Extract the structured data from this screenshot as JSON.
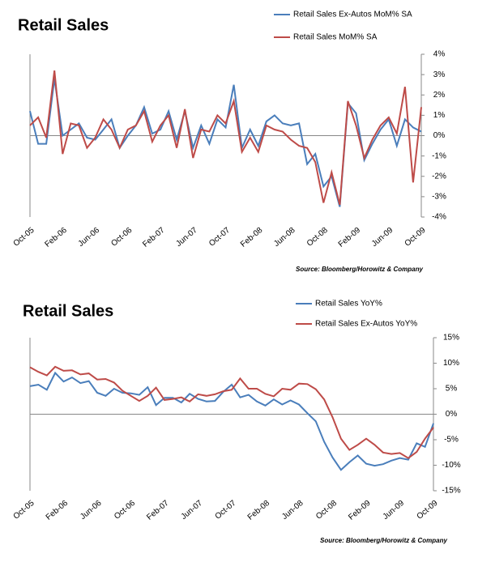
{
  "chart_data": [
    {
      "type": "line",
      "title": "Retail Sales",
      "source": "Source: Bloomberg/Horowitz  & Company",
      "categories": [
        "Oct-05",
        null,
        null,
        null,
        "Feb-06",
        null,
        null,
        null,
        "Jun-06",
        null,
        null,
        null,
        "Oct-06",
        null,
        null,
        null,
        "Feb-07",
        null,
        null,
        null,
        "Jun-07",
        null,
        null,
        null,
        "Oct-07",
        null,
        null,
        null,
        "Feb-08",
        null,
        null,
        null,
        "Jun-08",
        null,
        null,
        null,
        "Oct-08",
        null,
        null,
        null,
        "Feb-09",
        null,
        null,
        null,
        "Jun-09",
        null,
        null,
        null,
        "Oct-09"
      ],
      "series": [
        {
          "name": "Retail Sales Ex-Autos  MoM%  SA",
          "color": "#4a7ebb",
          "values": [
            1.2,
            -0.4,
            -0.4,
            2.8,
            0.0,
            0.3,
            0.6,
            -0.1,
            -0.2,
            0.3,
            0.8,
            -0.6,
            0.0,
            0.5,
            1.4,
            0.1,
            0.3,
            1.2,
            -0.2,
            1.2,
            -0.6,
            0.5,
            -0.4,
            0.8,
            0.4,
            2.5,
            -0.6,
            0.3,
            -0.5,
            0.7,
            1.0,
            0.6,
            0.5,
            0.6,
            -1.4,
            -0.9,
            -2.5,
            -2.0,
            -3.5,
            1.6,
            1.1,
            -1.2,
            -0.4,
            0.3,
            0.8,
            -0.5,
            0.8,
            0.4,
            0.2
          ]
        },
        {
          "name": "Retail Sales MoM%  SA",
          "color": "#be4b48",
          "values": [
            0.5,
            0.9,
            -0.1,
            3.2,
            -0.9,
            0.6,
            0.5,
            -0.6,
            -0.1,
            0.8,
            0.3,
            -0.6,
            0.3,
            0.5,
            1.2,
            -0.3,
            0.5,
            1.0,
            -0.6,
            1.3,
            -1.1,
            0.3,
            0.2,
            1.0,
            0.6,
            1.7,
            -0.8,
            -0.1,
            -0.8,
            0.5,
            0.3,
            0.2,
            -0.2,
            -0.5,
            -0.6,
            -1.3,
            -3.3,
            -1.8,
            -3.4,
            1.7,
            0.5,
            -1.1,
            -0.2,
            0.5,
            0.9,
            0.1,
            2.4,
            -2.3,
            1.4
          ]
        }
      ],
      "ylim": [
        -4,
        4
      ],
      "yticks": [
        {
          "value": -4,
          "label": "-4%"
        },
        {
          "value": -3,
          "label": "-3%"
        },
        {
          "value": -2,
          "label": "-2%"
        },
        {
          "value": -1,
          "label": "-1%"
        },
        {
          "value": 0,
          "label": "0%"
        },
        {
          "value": 1,
          "label": "1%"
        },
        {
          "value": 2,
          "label": "2%"
        },
        {
          "value": 3,
          "label": "3%"
        },
        {
          "value": 4,
          "label": "4%"
        }
      ],
      "grid": false
    },
    {
      "type": "line",
      "title": "Retail Sales",
      "source": "Source: Bloomberg/Horowitz  & Company",
      "categories": [
        "Oct-05",
        null,
        null,
        null,
        "Feb-06",
        null,
        null,
        null,
        "Jun-06",
        null,
        null,
        null,
        "Oct-06",
        null,
        null,
        null,
        "Feb-07",
        null,
        null,
        null,
        "Jun-07",
        null,
        null,
        null,
        "Oct-07",
        null,
        null,
        null,
        "Feb-08",
        null,
        null,
        null,
        "Jun-08",
        null,
        null,
        null,
        "Oct-08",
        null,
        null,
        null,
        "Feb-09",
        null,
        null,
        null,
        "Jun-09",
        null,
        null,
        null,
        "Oct-09"
      ],
      "series": [
        {
          "name": "Retail Sales YoY%",
          "color": "#4a7ebb",
          "values": [
            5.5,
            5.8,
            4.8,
            8.1,
            6.4,
            7.2,
            6.1,
            6.5,
            4.2,
            3.6,
            5.0,
            4.2,
            4.1,
            3.8,
            5.3,
            1.8,
            3.2,
            3.2,
            2.3,
            4.0,
            3.0,
            2.5,
            2.6,
            4.4,
            5.8,
            3.3,
            3.8,
            2.5,
            1.7,
            2.9,
            1.9,
            2.7,
            1.9,
            0.2,
            -1.4,
            -5.4,
            -8.5,
            -10.9,
            -9.4,
            -8.1,
            -9.7,
            -10.1,
            -9.8,
            -9.1,
            -8.6,
            -8.9,
            -5.7,
            -6.4,
            -1.8
          ]
        },
        {
          "name": "Retail Sales Ex-Autos  YoY%",
          "color": "#be4b48",
          "values": [
            9.2,
            8.3,
            7.6,
            9.3,
            8.5,
            8.6,
            7.8,
            8.0,
            6.8,
            6.9,
            6.2,
            4.6,
            3.6,
            2.6,
            3.6,
            5.2,
            2.8,
            3.0,
            3.3,
            2.5,
            3.9,
            3.6,
            3.9,
            4.5,
            4.8,
            7.0,
            5.0,
            5.0,
            4.0,
            3.5,
            5.0,
            4.8,
            6.0,
            5.9,
            4.9,
            2.9,
            -0.6,
            -4.8,
            -7.0,
            -6.0,
            -4.8,
            -6.0,
            -7.5,
            -7.8,
            -7.6,
            -8.6,
            -7.4,
            -4.8,
            -2.6
          ]
        }
      ],
      "ylim": [
        -15,
        15
      ],
      "yticks": [
        {
          "value": -15,
          "label": "-15%"
        },
        {
          "value": -10,
          "label": "-10%"
        },
        {
          "value": -5,
          "label": "-5%"
        },
        {
          "value": 0,
          "label": "0%"
        },
        {
          "value": 5,
          "label": "5%"
        },
        {
          "value": 10,
          "label": "10%"
        },
        {
          "value": 15,
          "label": "15%"
        }
      ],
      "grid": false
    }
  ]
}
